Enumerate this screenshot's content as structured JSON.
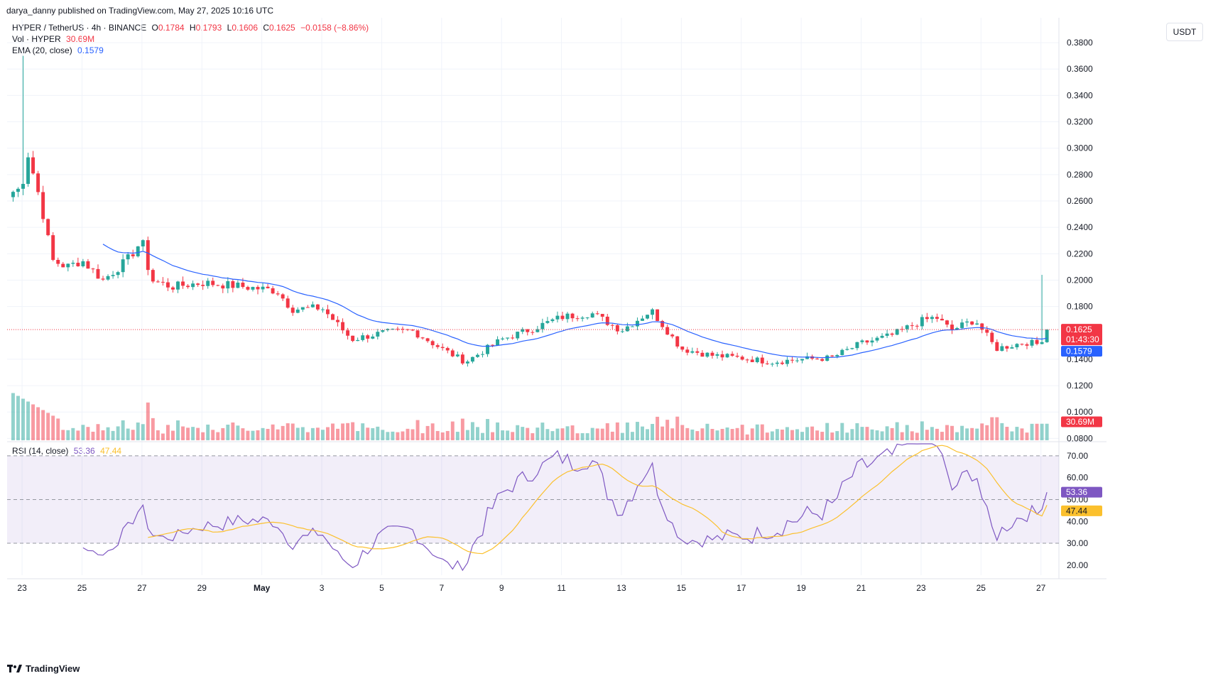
{
  "caption": "darya_danny published on TradingView.com, May 27, 2025 10:16 UTC",
  "legend": {
    "symbol": "HYPER / TetherUS · 4h · BINANCE",
    "o_label": "O",
    "o_val": "0.1784",
    "h_label": "H",
    "h_val": "0.1793",
    "l_label": "L",
    "l_val": "0.1606",
    "c_label": "C",
    "c_val": "0.1625",
    "change": "−0.0158 (−8.86%)",
    "vol_label": "Vol · HYPER",
    "vol_val": "30.69M",
    "ema_label": "EMA (20, close)",
    "ema_val": "0.1579",
    "rsi_label": "RSI (14, close)",
    "rsi_val": "53.36",
    "rsi_ma_val": "47.44"
  },
  "currency": "USDT",
  "brand": "TradingView",
  "colors": {
    "up": "#26a69a",
    "down": "#f23645",
    "ema": "#2962ff",
    "rsi": "#7e57c2",
    "rsi_ma": "#fbc02d"
  },
  "badges": {
    "price": "0.1625",
    "countdown": "01:43:30",
    "ema": "0.1579",
    "volume": "30.69M",
    "rsi": "53.36",
    "rsi_ma": "47.44"
  },
  "chart_data": [
    {
      "type": "candlestick",
      "title": "HYPER / TetherUS · 4h · BINANCE",
      "x_ticks": [
        "23",
        "25",
        "27",
        "29",
        "May",
        "3",
        "5",
        "7",
        "9",
        "11",
        "13",
        "15",
        "17",
        "19",
        "21",
        "23",
        "25",
        "27"
      ],
      "x_ticks_bold": [
        "May"
      ],
      "y_ticks": [
        "0.3800",
        "0.3600",
        "0.3400",
        "0.3200",
        "0.3000",
        "0.2800",
        "0.2600",
        "0.2400",
        "0.2200",
        "0.2000",
        "0.1800",
        "0.1400",
        "0.1200",
        "0.1000",
        "0.0800"
      ],
      "ylim": [
        0.0786,
        0.3935
      ],
      "x_range_days": [
        22.5,
        57.6
      ],
      "x_tick_days": [
        23,
        25,
        27,
        29,
        31,
        33,
        35,
        37,
        39,
        41,
        43,
        45,
        47,
        49,
        51,
        53,
        55,
        57
      ],
      "key_points": [
        {
          "day": 22.7,
          "price": 0.267
        },
        {
          "day": 23.0,
          "price": 0.27
        },
        {
          "day": 23.15,
          "price": 0.3
        },
        {
          "day": 23.5,
          "price": 0.27
        },
        {
          "day": 23.75,
          "price": 0.245
        },
        {
          "day": 24.0,
          "price": 0.215
        },
        {
          "day": 24.5,
          "price": 0.21
        },
        {
          "day": 25.0,
          "price": 0.215
        },
        {
          "day": 25.7,
          "price": 0.2
        },
        {
          "day": 26.5,
          "price": 0.215
        },
        {
          "day": 27.0,
          "price": 0.23
        },
        {
          "day": 27.3,
          "price": 0.2
        },
        {
          "day": 28.0,
          "price": 0.195
        },
        {
          "day": 29.0,
          "price": 0.198
        },
        {
          "day": 30.0,
          "price": 0.196
        },
        {
          "day": 31.5,
          "price": 0.192
        },
        {
          "day": 32.0,
          "price": 0.178
        },
        {
          "day": 33.0,
          "price": 0.179
        },
        {
          "day": 34.0,
          "price": 0.155
        },
        {
          "day": 35.0,
          "price": 0.16
        },
        {
          "day": 36.0,
          "price": 0.162
        },
        {
          "day": 37.0,
          "price": 0.148
        },
        {
          "day": 37.8,
          "price": 0.138
        },
        {
          "day": 39.0,
          "price": 0.155
        },
        {
          "day": 40.0,
          "price": 0.163
        },
        {
          "day": 41.0,
          "price": 0.172
        },
        {
          "day": 42.0,
          "price": 0.175
        },
        {
          "day": 43.0,
          "price": 0.162
        },
        {
          "day": 44.0,
          "price": 0.177
        },
        {
          "day": 45.0,
          "price": 0.148
        },
        {
          "day": 46.0,
          "price": 0.143
        },
        {
          "day": 47.0,
          "price": 0.141
        },
        {
          "day": 48.0,
          "price": 0.138
        },
        {
          "day": 49.0,
          "price": 0.14
        },
        {
          "day": 50.0,
          "price": 0.141
        },
        {
          "day": 51.0,
          "price": 0.152
        },
        {
          "day": 52.0,
          "price": 0.158
        },
        {
          "day": 53.0,
          "price": 0.169
        },
        {
          "day": 53.5,
          "price": 0.172
        },
        {
          "day": 54.0,
          "price": 0.162
        },
        {
          "day": 54.8,
          "price": 0.17
        },
        {
          "day": 55.5,
          "price": 0.148
        },
        {
          "day": 56.5,
          "price": 0.153
        },
        {
          "day": 57.0,
          "price": 0.151
        },
        {
          "day": 57.2,
          "price": 0.178
        },
        {
          "day": 57.35,
          "price": 0.1625
        }
      ],
      "ema_period": 20,
      "last_price": 0.1625,
      "last_ema": 0.1579
    },
    {
      "type": "bar",
      "title": "Vol · HYPER",
      "unit": "M",
      "last_value": 30.69
    },
    {
      "type": "line",
      "title": "RSI (14, close)",
      "y_ticks": [
        "70.00",
        "60.00",
        "50.00",
        "40.00",
        "30.00",
        "20.00"
      ],
      "ylim": [
        15.4,
        75.5
      ],
      "bands": [
        30,
        50,
        70
      ],
      "series": [
        {
          "name": "RSI",
          "last": 53.36
        },
        {
          "name": "RSI-based MA",
          "last": 47.44
        }
      ]
    }
  ]
}
